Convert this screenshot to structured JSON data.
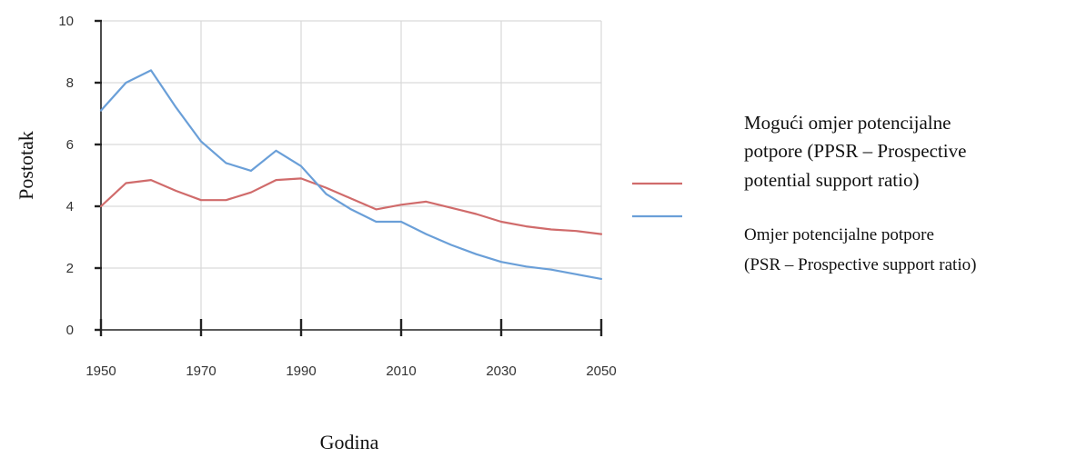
{
  "chart_data": {
    "type": "line",
    "xlabel": "Godina",
    "ylabel": "Postotak",
    "xlim": [
      1950,
      2050
    ],
    "ylim": [
      0,
      10
    ],
    "x_ticks": [
      "1950",
      "1970",
      "1990",
      "2010",
      "2030",
      "2050"
    ],
    "y_ticks": [
      "0",
      "2",
      "4",
      "6",
      "8",
      "10"
    ],
    "grid": true,
    "legend_position": "right",
    "series": [
      {
        "name": "Mogući omjer potencijalne potpore (PPSR – Prospective potential support ratio)",
        "legend_lines": [
          "Mogući omjer potencijalne",
          "potpore (PPSR – Prospective",
          "potential support ratio)"
        ],
        "color": "#d06b6b",
        "x": [
          1950,
          1955,
          1960,
          1965,
          1970,
          1975,
          1980,
          1985,
          1990,
          1995,
          2000,
          2005,
          2010,
          2015,
          2020,
          2025,
          2030,
          2035,
          2040,
          2045,
          2050
        ],
        "y": [
          4.0,
          4.75,
          4.85,
          4.5,
          4.2,
          4.2,
          4.45,
          4.85,
          4.9,
          4.6,
          4.25,
          3.9,
          4.05,
          4.15,
          3.95,
          3.75,
          3.5,
          3.35,
          3.25,
          3.2,
          3.1
        ]
      },
      {
        "name": "Omjer potencijalne potpore (PSR – Prospective support ratio)",
        "legend_lines": [
          "Omjer potencijalne potpore",
          "(PSR – Prospective support ratio)"
        ],
        "color": "#6a9fd8",
        "x": [
          1950,
          1955,
          1960,
          1965,
          1970,
          1975,
          1980,
          1985,
          1990,
          1995,
          2000,
          2005,
          2010,
          2015,
          2020,
          2025,
          2030,
          2035,
          2040,
          2045,
          2050
        ],
        "y": [
          7.1,
          8.0,
          8.4,
          7.2,
          6.1,
          5.4,
          5.15,
          5.8,
          5.3,
          4.4,
          3.9,
          3.5,
          3.5,
          3.1,
          2.75,
          2.45,
          2.2,
          2.05,
          1.95,
          1.8,
          1.65
        ]
      }
    ]
  }
}
